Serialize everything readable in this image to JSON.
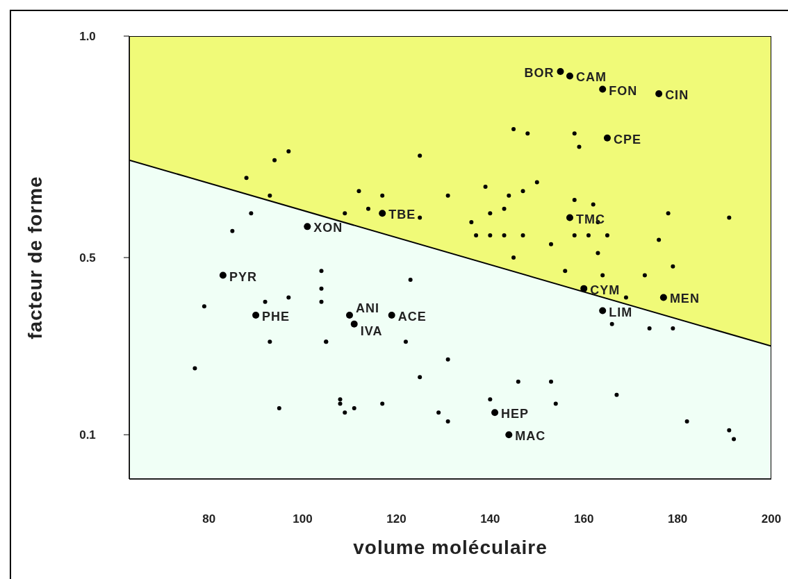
{
  "chart_data": {
    "type": "scatter",
    "xlabel": "volume moléculaire",
    "ylabel": "facteur de forme",
    "xlim": [
      63,
      200
    ],
    "ylim": [
      0,
      1
    ],
    "xticks": [
      80,
      100,
      120,
      140,
      160,
      180,
      200
    ],
    "yticks": [
      {
        "value": 0.1,
        "label": "0.1"
      },
      {
        "value": 0.5,
        "label": "0.5"
      },
      {
        "value": 1,
        "label": "1.0"
      }
    ],
    "series": [
      {
        "type": "area",
        "color": "#f0fa78",
        "x": [
          63,
          200
        ],
        "values": [
          1,
          1
        ]
      },
      {
        "type": "area",
        "color": "#f0fff6",
        "x": [
          63,
          200
        ],
        "values": [
          0.72,
          0.3
        ]
      },
      {
        "color": "#000000",
        "x": [
          155,
          157,
          164,
          176,
          165,
          117,
          157,
          101,
          83,
          160,
          177,
          164,
          90,
          110,
          119,
          111,
          141,
          144
        ],
        "values": [
          0.92,
          0.91,
          0.88,
          0.87,
          0.77,
          0.6,
          0.59,
          0.57,
          0.46,
          0.43,
          0.41,
          0.38,
          0.37,
          0.37,
          0.37,
          0.35,
          0.15,
          0.1
        ]
      },
      {
        "color": "#000000",
        "x": [
          145,
          148,
          158,
          159,
          97,
          94,
          125,
          88,
          150,
          139,
          147,
          93,
          112,
          131,
          117,
          144,
          158,
          162,
          143,
          114,
          109,
          89,
          178,
          140,
          125,
          163,
          191,
          136,
          85,
          143,
          147,
          158,
          165,
          161,
          137,
          140,
          176,
          153,
          163,
          145,
          104,
          156,
          164,
          179,
          173,
          123,
          104,
          97,
          169,
          104,
          92,
          79,
          166,
          174,
          179,
          93,
          105,
          105,
          122,
          131,
          77,
          125,
          146,
          153,
          167,
          108,
          108,
          140,
          117,
          154,
          95,
          111,
          109,
          129,
          131,
          182,
          191,
          192
        ],
        "values": [
          0.79,
          0.78,
          0.78,
          0.75,
          0.74,
          0.72,
          0.73,
          0.68,
          0.67,
          0.66,
          0.65,
          0.64,
          0.65,
          0.64,
          0.64,
          0.64,
          0.63,
          0.62,
          0.61,
          0.61,
          0.6,
          0.6,
          0.6,
          0.6,
          0.59,
          0.58,
          0.59,
          0.58,
          0.56,
          0.55,
          0.55,
          0.55,
          0.55,
          0.55,
          0.55,
          0.55,
          0.54,
          0.53,
          0.51,
          0.5,
          0.47,
          0.47,
          0.46,
          0.48,
          0.46,
          0.45,
          0.43,
          0.41,
          0.41,
          0.4,
          0.4,
          0.39,
          0.35,
          0.34,
          0.34,
          0.31,
          0.31,
          0.31,
          0.31,
          0.27,
          0.25,
          0.23,
          0.22,
          0.22,
          0.19,
          0.18,
          0.17,
          0.18,
          0.17,
          0.17,
          0.16,
          0.16,
          0.15,
          0.15,
          0.13,
          0.13,
          0.11,
          0.09
        ]
      }
    ],
    "annotations": [
      {
        "text": "BOR",
        "x": 155,
        "y": 0.92
      },
      {
        "text": "CAM",
        "x": 157,
        "y": 0.91
      },
      {
        "text": "FON",
        "x": 164,
        "y": 0.88
      },
      {
        "text": "CIN",
        "x": 176,
        "y": 0.87
      },
      {
        "text": "CPE",
        "x": 165,
        "y": 0.77
      },
      {
        "text": "TBE",
        "x": 117,
        "y": 0.6
      },
      {
        "text": "TMC",
        "x": 157,
        "y": 0.59
      },
      {
        "text": "XON",
        "x": 101,
        "y": 0.57
      },
      {
        "text": "PYR",
        "x": 83,
        "y": 0.46
      },
      {
        "text": "CYM",
        "x": 160,
        "y": 0.43
      },
      {
        "text": "MEN",
        "x": 177,
        "y": 0.41
      },
      {
        "text": "LIM",
        "x": 164,
        "y": 0.38
      },
      {
        "text": "PHE",
        "x": 90,
        "y": 0.37
      },
      {
        "text": "ANI",
        "x": 110,
        "y": 0.37
      },
      {
        "text": "ACE",
        "x": 119,
        "y": 0.37
      },
      {
        "text": "IVA",
        "x": 111,
        "y": 0.35
      },
      {
        "text": "HEP",
        "x": 141,
        "y": 0.15
      },
      {
        "text": "MAC",
        "x": 144,
        "y": 0.1
      }
    ]
  }
}
